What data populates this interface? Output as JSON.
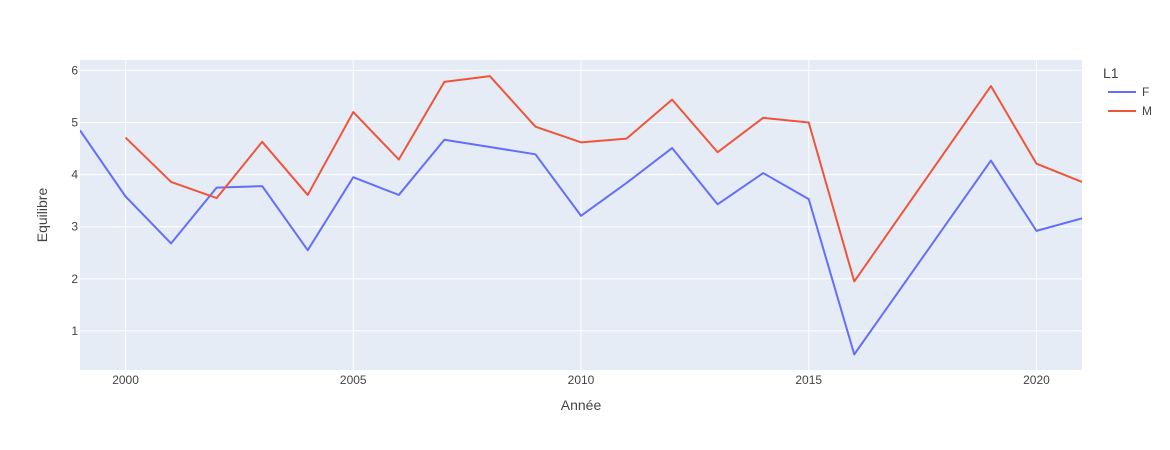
{
  "chart_data": {
    "type": "line",
    "xlabel": "Année",
    "ylabel": "Equilibre",
    "xlim": [
      1999,
      2021
    ],
    "ylim": [
      0.25,
      6.2
    ],
    "xticks": [
      2000,
      2005,
      2010,
      2015,
      2020
    ],
    "yticks": [
      1,
      2,
      3,
      4,
      5,
      6
    ],
    "grid": true,
    "legend": {
      "title": "L1",
      "placement": "right"
    },
    "series": [
      {
        "name": "F",
        "color": "#636efa",
        "x": [
          1999,
          2000,
          2001,
          2002,
          2003,
          2004,
          2005,
          2006,
          2007,
          2008,
          2009,
          2010,
          2011,
          2012,
          2013,
          2014,
          2015,
          2016,
          2019,
          2020,
          2021
        ],
        "y": [
          4.85,
          3.58,
          2.68,
          3.75,
          3.78,
          2.55,
          3.95,
          3.61,
          4.67,
          4.53,
          4.39,
          3.21,
          3.84,
          4.51,
          3.43,
          4.03,
          3.53,
          0.55,
          4.27,
          2.92,
          3.16
        ]
      },
      {
        "name": "M",
        "color": "#ef553b",
        "x": [
          2000,
          2001,
          2002,
          2003,
          2004,
          2005,
          2006,
          2007,
          2008,
          2009,
          2010,
          2011,
          2012,
          2013,
          2014,
          2015,
          2016,
          2019,
          2020,
          2021
        ],
        "y": [
          4.71,
          3.86,
          3.55,
          4.63,
          3.61,
          5.2,
          4.29,
          5.78,
          5.89,
          4.92,
          4.62,
          4.69,
          5.44,
          4.43,
          5.09,
          5.0,
          1.95,
          5.7,
          4.21,
          3.86
        ]
      }
    ]
  }
}
